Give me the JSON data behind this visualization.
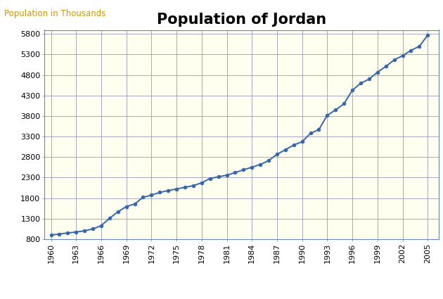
{
  "title": "Population of Jordan",
  "ylabel": "Population in Thousands",
  "years": [
    1960,
    1961,
    1962,
    1963,
    1964,
    1965,
    1966,
    1967,
    1968,
    1969,
    1970,
    1971,
    1972,
    1973,
    1974,
    1975,
    1976,
    1977,
    1978,
    1979,
    1980,
    1981,
    1982,
    1983,
    1984,
    1985,
    1986,
    1987,
    1988,
    1989,
    1990,
    1991,
    1992,
    1993,
    1994,
    1995,
    1996,
    1997,
    1998,
    1999,
    2000,
    2001,
    2002,
    2003,
    2004,
    2005
  ],
  "population": [
    901,
    926,
    952,
    976,
    1003,
    1051,
    1131,
    1310,
    1470,
    1595,
    1660,
    1820,
    1875,
    1940,
    1985,
    2025,
    2065,
    2105,
    2175,
    2280,
    2320,
    2360,
    2425,
    2490,
    2555,
    2620,
    2715,
    2870,
    2980,
    3095,
    3175,
    3380,
    3470,
    3820,
    3950,
    4100,
    4430,
    4600,
    4700,
    4870,
    5010,
    5170,
    5270,
    5400,
    5500,
    5770
  ],
  "line_color": "#3366aa",
  "marker": "o",
  "marker_size": 3.5,
  "background_color": "#ffffff",
  "plot_bg_color": "#fffff0",
  "grid_color": "#9999bb",
  "grid_color_minor": "#ccccdd",
  "ylim": [
    800,
    5900
  ],
  "yticks": [
    800,
    1300,
    1800,
    2300,
    2800,
    3300,
    3800,
    4300,
    4800,
    5300,
    5800
  ],
  "xtick_start": 1960,
  "xtick_end": 2006,
  "xtick_step": 3,
  "title_fontsize": 15,
  "ylabel_color": "#cc9900",
  "label_fontsize": 8.5,
  "tick_fontsize": 8,
  "xlim_left": 1959.2,
  "xlim_right": 2006.3
}
